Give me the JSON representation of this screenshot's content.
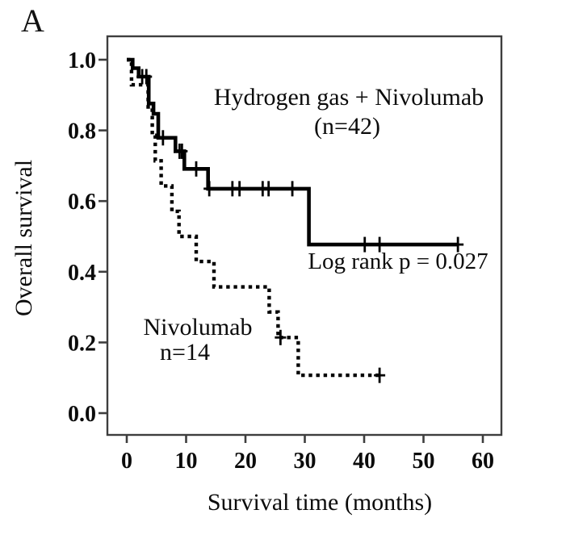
{
  "panel_label": "A",
  "colors": {
    "curve": "#000000",
    "frame": "#3e3e3e",
    "text": "#0b0b0b",
    "background": "#ffffff"
  },
  "chart_data": {
    "type": "line",
    "subtype": "kaplan_meier_step",
    "title": "",
    "xlabel": "Survival time (months)",
    "ylabel": "Overall survival",
    "xlim": [
      0,
      63
    ],
    "ylim": [
      0.0,
      1.05
    ],
    "xticks": [
      "0",
      "10",
      "20",
      "30",
      "40",
      "50",
      "60"
    ],
    "yticks": [
      "0.0",
      "0.2",
      "0.4",
      "0.6",
      "0.8",
      "1.0"
    ],
    "grid": false,
    "legend_position": "inline annotations",
    "annotations": {
      "group1_label_line1": "Hydrogen gas + Nivolumab",
      "group1_label_line2": "(n=42)",
      "group2_label_line1": "Nivolumab",
      "group2_label_line2": "n=14",
      "stats": "Log rank p = 0.027"
    },
    "series": [
      {
        "name": "Hydrogen gas + Nivolumab",
        "n": 42,
        "style": "solid",
        "color": "#000000",
        "points": [
          [
            0,
            1.0
          ],
          [
            1.0,
            1.0
          ],
          [
            1.0,
            0.976
          ],
          [
            2.0,
            0.976
          ],
          [
            2.0,
            0.952
          ],
          [
            3.7,
            0.952
          ],
          [
            3.7,
            0.876
          ],
          [
            4.5,
            0.876
          ],
          [
            4.5,
            0.847
          ],
          [
            5.3,
            0.847
          ],
          [
            5.3,
            0.779
          ],
          [
            8.2,
            0.779
          ],
          [
            8.2,
            0.741
          ],
          [
            9.7,
            0.741
          ],
          [
            9.7,
            0.691
          ],
          [
            13.7,
            0.691
          ],
          [
            13.7,
            0.635
          ],
          [
            30.7,
            0.635
          ],
          [
            30.7,
            0.477
          ],
          [
            55.8,
            0.477
          ]
        ],
        "censor_marks": [
          [
            2.6,
            0.952
          ],
          [
            3.3,
            0.952
          ],
          [
            6.1,
            0.779
          ],
          [
            8.9,
            0.741
          ],
          [
            9.3,
            0.741
          ],
          [
            11.7,
            0.691
          ],
          [
            13.9,
            0.635
          ],
          [
            17.8,
            0.635
          ],
          [
            19.0,
            0.635
          ],
          [
            22.9,
            0.635
          ],
          [
            23.9,
            0.635
          ],
          [
            27.9,
            0.635
          ],
          [
            40.1,
            0.477
          ],
          [
            42.6,
            0.477
          ],
          [
            55.8,
            0.477
          ]
        ]
      },
      {
        "name": "Nivolumab",
        "n": 14,
        "style": "dotted",
        "color": "#000000",
        "points": [
          [
            0,
            1.0
          ],
          [
            0.8,
            1.0
          ],
          [
            0.8,
            0.929
          ],
          [
            3.6,
            0.929
          ],
          [
            3.6,
            0.857
          ],
          [
            4.3,
            0.857
          ],
          [
            4.3,
            0.786
          ],
          [
            4.8,
            0.786
          ],
          [
            4.8,
            0.714
          ],
          [
            5.8,
            0.714
          ],
          [
            5.8,
            0.643
          ],
          [
            7.6,
            0.643
          ],
          [
            7.6,
            0.571
          ],
          [
            8.8,
            0.571
          ],
          [
            8.8,
            0.5
          ],
          [
            11.7,
            0.5
          ],
          [
            11.7,
            0.429
          ],
          [
            14.7,
            0.429
          ],
          [
            14.7,
            0.357
          ],
          [
            24.0,
            0.357
          ],
          [
            24.0,
            0.286
          ],
          [
            25.5,
            0.286
          ],
          [
            25.5,
            0.214
          ],
          [
            28.9,
            0.214
          ],
          [
            28.9,
            0.107
          ],
          [
            42.6,
            0.107
          ]
        ],
        "censor_marks": [
          [
            25.9,
            0.214
          ],
          [
            42.6,
            0.107
          ]
        ]
      }
    ]
  }
}
